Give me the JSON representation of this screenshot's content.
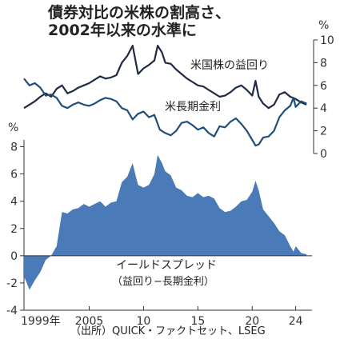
{
  "title_line1": "債券対比の米株の割高さ、",
  "title_line2": "2002年以来の水準に",
  "source": "（出所）QUICK・ファクトセット、LSEG",
  "colors": {
    "earnings_yield": "#1f2a44",
    "bond_yield": "#1f4e79",
    "spread_fill": "#4a7ab8",
    "axis": "#333333"
  },
  "chart_data": [
    {
      "type": "line",
      "right_axis": {
        "unit": "%",
        "ticks": [
          "0",
          "2",
          "4",
          "6",
          "8",
          "10"
        ],
        "ylim": [
          0,
          10
        ]
      },
      "x_tick_labels": [
        "1999年",
        "2005",
        "10",
        "15",
        "20",
        "24"
      ],
      "x_tick_values": [
        1999,
        2005,
        2010,
        2015,
        2020,
        2024
      ],
      "xlim": [
        1999,
        2025.5
      ],
      "series": [
        {
          "name": "米国株の益回り",
          "x": [
            1999,
            1999.5,
            2000,
            2000.5,
            2001,
            2001.5,
            2002,
            2002.5,
            2003,
            2003.5,
            2004,
            2004.5,
            2005,
            2005.5,
            2006,
            2006.5,
            2007,
            2007.5,
            2008,
            2008.5,
            2009,
            2009.3,
            2009.5,
            2010,
            2010.5,
            2011,
            2011.3,
            2011.7,
            2012,
            2012.5,
            2013,
            2013.5,
            2014,
            2014.5,
            2015,
            2015.5,
            2016,
            2016.5,
            2017,
            2017.5,
            2018,
            2018.5,
            2019,
            2019.5,
            2020,
            2020.3,
            2020.6,
            2021,
            2021.5,
            2022,
            2022.5,
            2023,
            2023.5,
            2024,
            2024.5,
            2025
          ],
          "values": [
            4.0,
            4.3,
            4.6,
            5.0,
            5.3,
            5.0,
            5.7,
            6.0,
            5.3,
            5.5,
            5.8,
            6.0,
            6.2,
            6.5,
            6.8,
            6.6,
            6.7,
            6.9,
            8.0,
            8.6,
            9.5,
            8.0,
            7.0,
            7.5,
            7.8,
            8.2,
            9.5,
            8.9,
            8.0,
            7.9,
            7.4,
            7.0,
            6.6,
            6.3,
            6.0,
            5.9,
            5.6,
            5.3,
            5.0,
            5.1,
            5.4,
            5.8,
            6.0,
            5.6,
            5.1,
            6.4,
            5.0,
            4.4,
            4.0,
            4.3,
            5.2,
            5.4,
            5.0,
            4.8,
            4.5,
            4.3
          ]
        },
        {
          "name": "米長期金利",
          "x": [
            1999,
            1999.5,
            2000,
            2000.5,
            2001,
            2001.5,
            2002,
            2002.5,
            2003,
            2003.5,
            2004,
            2004.5,
            2005,
            2005.5,
            2006,
            2006.5,
            2007,
            2007.5,
            2008,
            2008.5,
            2009,
            2009.5,
            2010,
            2010.5,
            2011,
            2011.5,
            2012,
            2012.5,
            2013,
            2013.5,
            2014,
            2014.5,
            2015,
            2015.5,
            2016,
            2016.5,
            2017,
            2017.5,
            2018,
            2018.5,
            2019,
            2019.5,
            2020,
            2020.3,
            2020.6,
            2021,
            2021.5,
            2022,
            2022.5,
            2023,
            2023.5,
            2023.8,
            2024,
            2024.5,
            2025
          ],
          "values": [
            6.6,
            6.0,
            6.2,
            5.8,
            5.1,
            5.2,
            4.9,
            4.2,
            4.0,
            4.3,
            4.5,
            4.3,
            4.2,
            4.4,
            4.7,
            4.9,
            4.8,
            4.6,
            4.0,
            3.8,
            3.0,
            3.5,
            3.7,
            3.2,
            3.4,
            2.1,
            1.8,
            1.6,
            2.0,
            2.7,
            2.8,
            2.5,
            2.1,
            2.3,
            1.8,
            1.5,
            2.4,
            2.3,
            2.8,
            3.1,
            2.6,
            2.0,
            1.2,
            0.7,
            0.8,
            1.4,
            1.5,
            2.0,
            3.2,
            3.8,
            4.2,
            4.9,
            4.1,
            4.6,
            4.4
          ]
        }
      ]
    },
    {
      "type": "area",
      "left_axis": {
        "unit": "%",
        "ticks": [
          "-4",
          "-2",
          "0",
          "2",
          "4",
          "6",
          "8"
        ],
        "ylim": [
          -4,
          8.5
        ]
      },
      "series": [
        {
          "name": "イールドスプレッド",
          "subtitle": "（益回り−長期金利）",
          "x": [
            1999,
            1999.5,
            2000,
            2000.5,
            2001,
            2001.5,
            2002,
            2002.5,
            2003,
            2003.5,
            2004,
            2004.5,
            2005,
            2005.5,
            2006,
            2006.5,
            2007,
            2007.5,
            2008,
            2008.5,
            2009,
            2009.3,
            2009.5,
            2010,
            2010.5,
            2011,
            2011.3,
            2011.7,
            2012,
            2012.5,
            2013,
            2013.5,
            2014,
            2014.5,
            2015,
            2015.5,
            2016,
            2016.5,
            2017,
            2017.5,
            2018,
            2018.5,
            2019,
            2019.5,
            2020,
            2020.3,
            2020.6,
            2021,
            2021.5,
            2022,
            2022.5,
            2023,
            2023.5,
            2023.8,
            2024,
            2024.5,
            2025
          ],
          "values": [
            -1.5,
            -2.5,
            -1.8,
            -1.2,
            -0.3,
            0.0,
            0.7,
            3.2,
            3.1,
            3.4,
            3.5,
            3.8,
            3.6,
            3.8,
            4.0,
            3.6,
            3.9,
            4.0,
            5.4,
            5.8,
            6.8,
            5.8,
            5.2,
            5.0,
            5.2,
            6.0,
            7.4,
            6.8,
            6.2,
            5.9,
            5.0,
            4.8,
            4.4,
            4.3,
            4.6,
            4.3,
            4.4,
            4.2,
            3.5,
            3.2,
            3.3,
            3.6,
            4.0,
            4.1,
            4.7,
            5.5,
            4.8,
            3.4,
            2.9,
            2.4,
            1.8,
            1.5,
            0.7,
            0.3,
            0.7,
            0.2,
            0.1
          ]
        }
      ]
    }
  ]
}
